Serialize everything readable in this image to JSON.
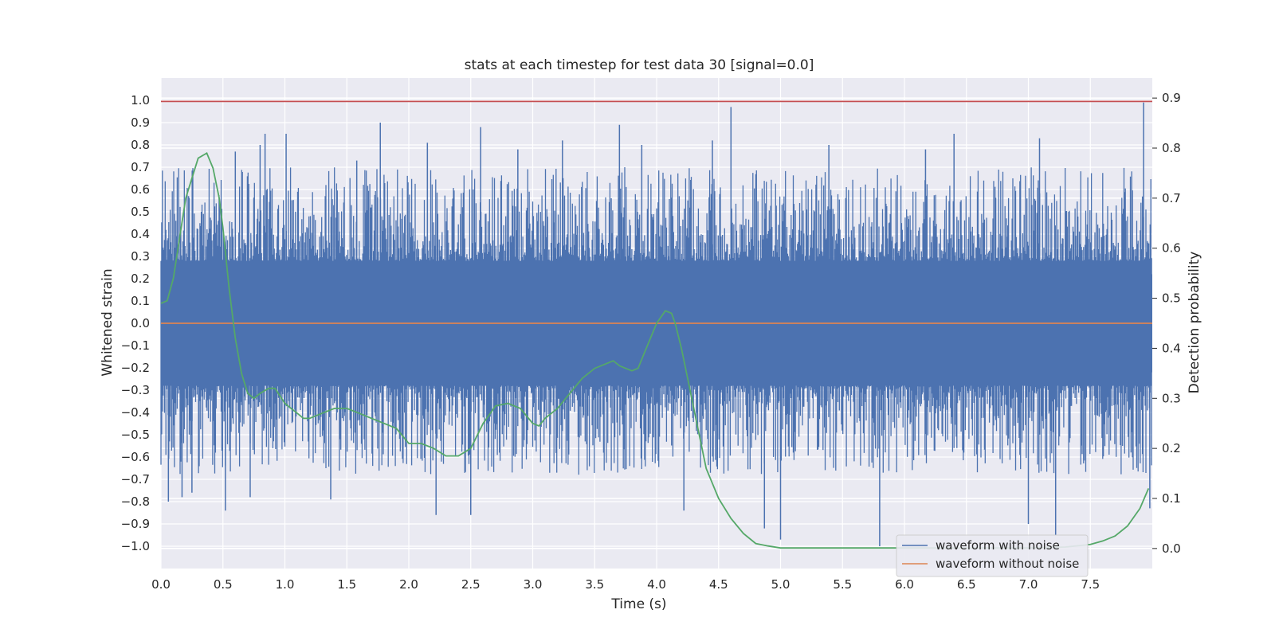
{
  "chart_data": {
    "type": "line",
    "title": "stats at each timestep for test data 30 [signal=0.0]",
    "xlabel": "Time (s)",
    "ylabel": "Whitened strain",
    "y2label": "Detection probability",
    "xlim": [
      0.0,
      8.0
    ],
    "ylim": [
      -1.1,
      1.1
    ],
    "y2lim": [
      -0.04,
      0.94
    ],
    "x_ticks": [
      "0.0",
      "0.5",
      "1.0",
      "1.5",
      "2.0",
      "2.5",
      "3.0",
      "3.5",
      "4.0",
      "4.5",
      "5.0",
      "5.5",
      "6.0",
      "6.5",
      "7.0",
      "7.5"
    ],
    "y_ticks": [
      "−1.0",
      "−0.9",
      "−0.8",
      "−0.7",
      "−0.6",
      "−0.5",
      "−0.4",
      "−0.3",
      "−0.2",
      "−0.1",
      "0.0",
      "0.1",
      "0.2",
      "0.3",
      "0.4",
      "0.5",
      "0.6",
      "0.7",
      "0.8",
      "0.9",
      "1.0"
    ],
    "y2_ticks": [
      "0.0",
      "0.1",
      "0.2",
      "0.3",
      "0.4",
      "0.5",
      "0.6",
      "0.7",
      "0.8",
      "0.9"
    ],
    "grid": true,
    "legend_position": "lower-right",
    "series": [
      {
        "name": "waveform with noise",
        "color": "#4c72b0",
        "axis": "left",
        "description_values": "dense noise, mostly within ±0.35 with spikes",
        "spikes": [
          {
            "x": 0.06,
            "y": -0.8
          },
          {
            "x": 0.17,
            "y": -0.78
          },
          {
            "x": 0.25,
            "y": -0.76
          },
          {
            "x": 0.52,
            "y": -0.84
          },
          {
            "x": 0.6,
            "y": 0.77
          },
          {
            "x": 0.72,
            "y": -0.78
          },
          {
            "x": 0.8,
            "y": 0.8
          },
          {
            "x": 0.84,
            "y": 0.85
          },
          {
            "x": 1.01,
            "y": 0.85
          },
          {
            "x": 1.37,
            "y": -0.79
          },
          {
            "x": 1.58,
            "y": 0.73
          },
          {
            "x": 1.77,
            "y": 0.9
          },
          {
            "x": 2.15,
            "y": 0.81
          },
          {
            "x": 2.22,
            "y": -0.86
          },
          {
            "x": 2.5,
            "y": -0.86
          },
          {
            "x": 2.58,
            "y": 0.88
          },
          {
            "x": 2.88,
            "y": 0.78
          },
          {
            "x": 3.24,
            "y": 0.82
          },
          {
            "x": 3.7,
            "y": 0.89
          },
          {
            "x": 3.88,
            "y": 0.8
          },
          {
            "x": 4.22,
            "y": -0.84
          },
          {
            "x": 4.45,
            "y": 0.82
          },
          {
            "x": 4.6,
            "y": 0.97
          },
          {
            "x": 4.87,
            "y": -0.92
          },
          {
            "x": 5.0,
            "y": -0.97
          },
          {
            "x": 5.39,
            "y": 0.8
          },
          {
            "x": 5.8,
            "y": -1.0
          },
          {
            "x": 6.17,
            "y": 0.78
          },
          {
            "x": 6.4,
            "y": 0.85
          },
          {
            "x": 7.0,
            "y": -0.9
          },
          {
            "x": 7.09,
            "y": 0.83
          },
          {
            "x": 7.22,
            "y": -0.95
          },
          {
            "x": 7.93,
            "y": 0.99
          },
          {
            "x": 7.98,
            "y": -0.83
          }
        ]
      },
      {
        "name": "waveform without noise",
        "color": "#dd8452",
        "axis": "left",
        "x": [
          0.0,
          8.0
        ],
        "y": [
          0.0,
          0.0
        ]
      },
      {
        "color": "#55a868",
        "axis": "right",
        "x": [
          0.0,
          0.05,
          0.1,
          0.15,
          0.2,
          0.25,
          0.3,
          0.37,
          0.42,
          0.47,
          0.5,
          0.55,
          0.6,
          0.65,
          0.7,
          0.75,
          0.8,
          0.87,
          0.92,
          1.0,
          1.05,
          1.1,
          1.15,
          1.2,
          1.3,
          1.4,
          1.5,
          1.6,
          1.7,
          1.8,
          1.9,
          2.0,
          2.1,
          2.2,
          2.3,
          2.4,
          2.5,
          2.6,
          2.7,
          2.8,
          2.9,
          3.0,
          3.05,
          3.1,
          3.2,
          3.3,
          3.4,
          3.5,
          3.6,
          3.65,
          3.7,
          3.75,
          3.8,
          3.85,
          3.9,
          4.0,
          4.07,
          4.12,
          4.15,
          4.2,
          4.25,
          4.3,
          4.4,
          4.5,
          4.6,
          4.7,
          4.8,
          4.9,
          5.0,
          5.2,
          5.5,
          6.0,
          6.5,
          7.0,
          7.3,
          7.5,
          7.6,
          7.7,
          7.8,
          7.9,
          7.97
        ],
        "y": [
          0.49,
          0.495,
          0.54,
          0.62,
          0.7,
          0.74,
          0.78,
          0.79,
          0.76,
          0.7,
          0.64,
          0.52,
          0.42,
          0.35,
          0.31,
          0.3,
          0.31,
          0.32,
          0.32,
          0.29,
          0.28,
          0.27,
          0.26,
          0.26,
          0.27,
          0.28,
          0.28,
          0.27,
          0.26,
          0.25,
          0.24,
          0.21,
          0.21,
          0.2,
          0.185,
          0.185,
          0.2,
          0.25,
          0.285,
          0.29,
          0.28,
          0.25,
          0.245,
          0.26,
          0.28,
          0.31,
          0.34,
          0.36,
          0.37,
          0.375,
          0.365,
          0.36,
          0.355,
          0.36,
          0.39,
          0.45,
          0.475,
          0.47,
          0.45,
          0.4,
          0.34,
          0.28,
          0.16,
          0.1,
          0.06,
          0.03,
          0.01,
          0.005,
          0.001,
          0.001,
          0.001,
          0.001,
          0.001,
          0.001,
          0.003,
          0.008,
          0.015,
          0.025,
          0.045,
          0.08,
          0.12
        ]
      },
      {
        "color": "#c44e52",
        "axis": "left",
        "x": [
          0.0,
          8.0
        ],
        "y": [
          0.995,
          0.995
        ]
      }
    ]
  }
}
